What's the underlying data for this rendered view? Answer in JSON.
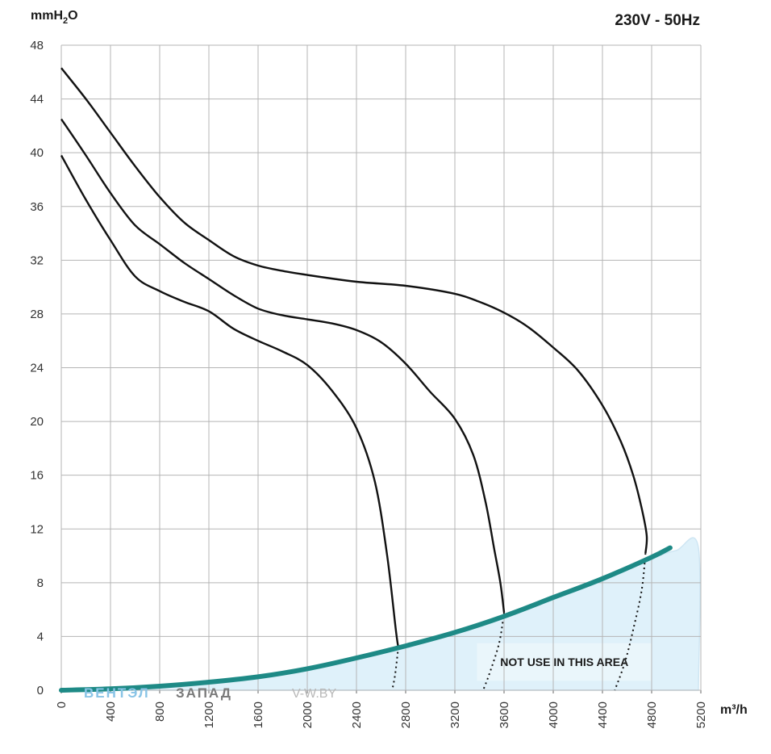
{
  "supply_label": "230V - 50Hz",
  "watermark": {
    "part1": "ВЕНТЭЛ",
    "part2": "ЗАПАД",
    "part3": "V-W.BY"
  },
  "chart_data": {
    "type": "line",
    "title": "",
    "xlabel": "m³/h",
    "ylabel_main": "mmH",
    "ylabel_sub": "2",
    "ylabel_tail": "O",
    "xlim": [
      0,
      5200
    ],
    "ylim": [
      0,
      48
    ],
    "xticks": [
      0,
      400,
      800,
      1200,
      1600,
      2000,
      2400,
      2800,
      3200,
      3600,
      4000,
      4400,
      4800,
      5200
    ],
    "yticks": [
      0,
      4,
      8,
      12,
      16,
      20,
      24,
      28,
      32,
      36,
      40,
      44,
      48
    ],
    "grid": true,
    "colors": {
      "curve": "#111111",
      "system": "#1e8a86",
      "zone_fill": "#dff1fa",
      "zone_edge": "#cfe6f3",
      "zone_box": "#eaf6fb",
      "grid": "#b5b5b5"
    },
    "series": [
      {
        "points": [
          [
            0,
            39.8
          ],
          [
            200,
            36.5
          ],
          [
            400,
            33.5
          ],
          [
            600,
            30.8
          ],
          [
            800,
            29.7
          ],
          [
            1000,
            28.9
          ],
          [
            1200,
            28.2
          ],
          [
            1400,
            26.9
          ],
          [
            1600,
            26
          ],
          [
            1800,
            25.2
          ],
          [
            2000,
            24.2
          ],
          [
            2200,
            22.3
          ],
          [
            2400,
            19.5
          ],
          [
            2550,
            15.5
          ],
          [
            2650,
            10
          ],
          [
            2720,
            4.5
          ],
          [
            2740,
            3.2
          ]
        ],
        "dashed": [
          [
            2740,
            3.2
          ],
          [
            2715,
            1.2
          ],
          [
            2690,
            0
          ]
        ]
      },
      {
        "points": [
          [
            0,
            42.5
          ],
          [
            200,
            39.8
          ],
          [
            400,
            37
          ],
          [
            600,
            34.6
          ],
          [
            800,
            33.2
          ],
          [
            1000,
            31.8
          ],
          [
            1200,
            30.6
          ],
          [
            1400,
            29.4
          ],
          [
            1600,
            28.4
          ],
          [
            1800,
            27.9
          ],
          [
            2000,
            27.6
          ],
          [
            2200,
            27.3
          ],
          [
            2400,
            26.8
          ],
          [
            2600,
            25.9
          ],
          [
            2800,
            24.3
          ],
          [
            3000,
            22.2
          ],
          [
            3200,
            20.2
          ],
          [
            3350,
            17.5
          ],
          [
            3450,
            14
          ],
          [
            3520,
            10.5
          ],
          [
            3570,
            8
          ],
          [
            3600,
            5.8
          ]
        ],
        "dashed": [
          [
            3600,
            5.8
          ],
          [
            3560,
            3.5
          ],
          [
            3480,
            1.2
          ],
          [
            3430,
            0
          ]
        ]
      },
      {
        "points": [
          [
            0,
            46.3
          ],
          [
            200,
            44
          ],
          [
            400,
            41.5
          ],
          [
            600,
            39
          ],
          [
            800,
            36.7
          ],
          [
            1000,
            34.8
          ],
          [
            1200,
            33.5
          ],
          [
            1400,
            32.3
          ],
          [
            1600,
            31.6
          ],
          [
            1800,
            31.2
          ],
          [
            2000,
            30.9
          ],
          [
            2400,
            30.4
          ],
          [
            2800,
            30.1
          ],
          [
            3200,
            29.5
          ],
          [
            3400,
            28.9
          ],
          [
            3600,
            28.1
          ],
          [
            3800,
            27
          ],
          [
            4000,
            25.5
          ],
          [
            4200,
            23.8
          ],
          [
            4400,
            21.2
          ],
          [
            4550,
            18.5
          ],
          [
            4650,
            16
          ],
          [
            4720,
            13.5
          ],
          [
            4760,
            11.5
          ],
          [
            4750,
            10.2
          ]
        ],
        "dashed": [
          [
            4750,
            10.2
          ],
          [
            4720,
            7.5
          ],
          [
            4650,
            4.5
          ],
          [
            4580,
            2
          ],
          [
            4500,
            0
          ]
        ]
      }
    ],
    "system_curve": {
      "points": [
        [
          0,
          0
        ],
        [
          400,
          0.1
        ],
        [
          800,
          0.3
        ],
        [
          1200,
          0.6
        ],
        [
          1600,
          1.0
        ],
        [
          2000,
          1.6
        ],
        [
          2400,
          2.4
        ],
        [
          2800,
          3.3
        ],
        [
          3200,
          4.3
        ],
        [
          3600,
          5.5
        ],
        [
          4000,
          6.9
        ],
        [
          4400,
          8.3
        ],
        [
          4800,
          9.9
        ],
        [
          4950,
          10.6
        ]
      ]
    },
    "forbidden_zone": {
      "label": "NOT USE IN THIS AREA",
      "outline": [
        [
          0,
          0
        ],
        [
          400,
          0.1
        ],
        [
          800,
          0.3
        ],
        [
          1200,
          0.6
        ],
        [
          1600,
          1.0
        ],
        [
          2000,
          1.6
        ],
        [
          2400,
          2.4
        ],
        [
          2800,
          3.3
        ],
        [
          3200,
          4.3
        ],
        [
          3600,
          5.5
        ],
        [
          4000,
          6.9
        ],
        [
          4400,
          8.3
        ],
        [
          4800,
          9.8
        ],
        [
          5000,
          10.4
        ],
        [
          5180,
          10.6
        ],
        [
          5180,
          0
        ]
      ],
      "label_box": {
        "x0": 3380,
        "x1": 4800,
        "y0": 0.7,
        "y1": 3.5
      }
    }
  }
}
